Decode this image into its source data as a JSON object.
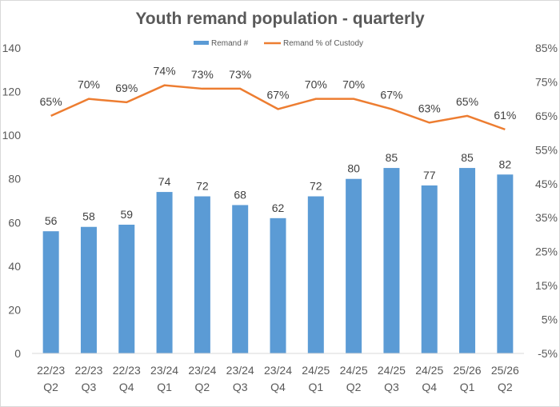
{
  "chart_data": {
    "type": "bar+line",
    "title": "Youth remand population - quarterly",
    "legend_position": "top",
    "categories": [
      [
        "22/23",
        "Q2"
      ],
      [
        "22/23",
        "Q3"
      ],
      [
        "22/23",
        "Q4"
      ],
      [
        "23/24",
        "Q1"
      ],
      [
        "23/24",
        "Q2"
      ],
      [
        "23/24",
        "Q3"
      ],
      [
        "23/24",
        "Q4"
      ],
      [
        "24/25",
        "Q1"
      ],
      [
        "24/25",
        "Q2"
      ],
      [
        "24/25",
        "Q3"
      ],
      [
        "24/25",
        "Q4"
      ],
      [
        "25/26",
        "Q1"
      ],
      [
        "25/26",
        "Q2"
      ]
    ],
    "series": [
      {
        "name": "Remand #",
        "type": "bar",
        "axis": "left",
        "color": "#5b9bd5",
        "values": [
          56,
          58,
          59,
          74,
          72,
          68,
          62,
          72,
          80,
          85,
          77,
          85,
          82
        ]
      },
      {
        "name": "Remand % of Custody",
        "type": "line",
        "axis": "right",
        "color": "#ed7d31",
        "values": [
          65,
          70,
          69,
          74,
          73,
          73,
          67,
          70,
          70,
          67,
          63,
          65,
          61
        ]
      }
    ],
    "left_axis": {
      "ylim": [
        0,
        140
      ],
      "ticks": [
        "0",
        "20",
        "40",
        "60",
        "80",
        "100",
        "120",
        "140"
      ]
    },
    "right_axis": {
      "ylim": [
        -5,
        85
      ],
      "ticks": [
        "-5%",
        "5%",
        "15%",
        "25%",
        "35%",
        "45%",
        "55%",
        "65%",
        "75%",
        "85%"
      ]
    },
    "grid": false
  }
}
